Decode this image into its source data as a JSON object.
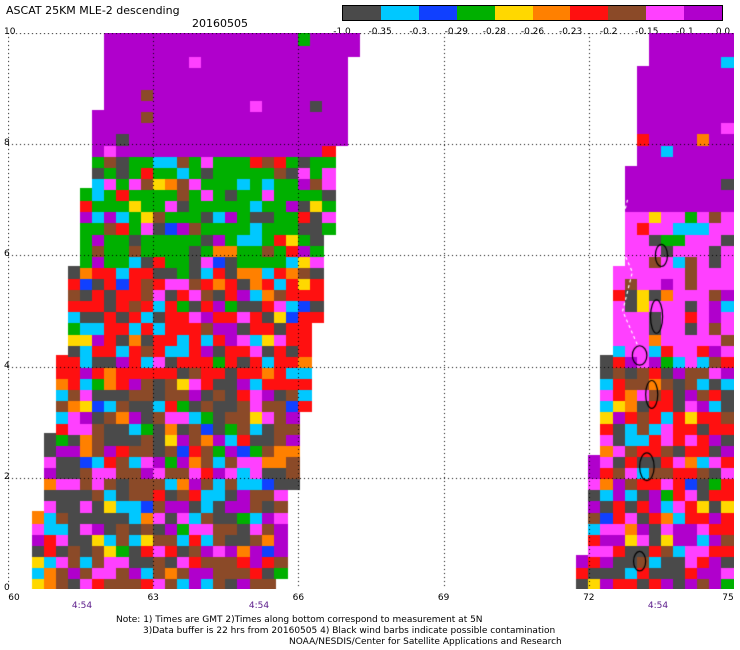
{
  "header": {
    "title": "ASCAT 25KM MLE-2 descending",
    "date": "20160505"
  },
  "colorbar": {
    "labels": [
      "-1.0",
      "-0.35",
      "-0.3",
      "-0.29",
      "-0.28",
      "-0.26",
      "-0.23",
      "-0.2",
      "-0.15",
      "-0.1",
      "0.0"
    ],
    "colors": [
      "#4a4a4a",
      "#00c8ff",
      "#1040ff",
      "#00b000",
      "#ffd800",
      "#ff8000",
      "#ff1010",
      "#8b4a28",
      "#ff40ff",
      "#b000cc"
    ]
  },
  "axes": {
    "x_ticks": [
      "60",
      "63",
      "66",
      "69",
      "72",
      "75"
    ],
    "y_ticks": [
      "0",
      "2",
      "4",
      "6",
      "8",
      "10"
    ],
    "time_labels": [
      "4:54",
      "4:54",
      "4:54"
    ]
  },
  "notes": {
    "line1": "Note: 1) Times are GMT 2)Times along bottom correspond to measurement at 5N",
    "line2": "3)Data buffer is 22 hrs from 20160505 4) Black wind barbs indicate possible contamination",
    "line3": "NOAA/NESDIS/Center for Satellite Applications and Research"
  },
  "chart_data": {
    "type": "heatmap",
    "title": "ASCAT 25KM MLE-2 descending",
    "xlim": [
      60,
      75
    ],
    "ylim": [
      0,
      10
    ],
    "cell_size_deg": 0.25,
    "grid": "dotted",
    "colorscale": {
      "bounds": [
        -1.0,
        -0.35,
        -0.3,
        -0.29,
        -0.28,
        -0.26,
        -0.23,
        -0.2,
        -0.15,
        -0.1,
        0.0
      ],
      "colors": [
        "#4a4a4a",
        "#00c8ff",
        "#1040ff",
        "#00b000",
        "#ffd800",
        "#ff8000",
        "#ff1010",
        "#8b4a28",
        "#ff40ff",
        "#b000cc"
      ]
    },
    "swaths": [
      {
        "boundary": [
          [
            60.4,
            0.0
          ],
          [
            62.1,
            10.0
          ],
          [
            67.2,
            10.0
          ],
          [
            65.6,
            0.0
          ]
        ],
        "value_bands": [
          {
            "ymin": 8.3,
            "ymax": 10.0,
            "dominant": -0.05,
            "noise": 0.04
          },
          {
            "ymin": 5.9,
            "ymax": 7.9,
            "dominant": -0.28,
            "noise": 0.5
          },
          {
            "ymin": 3.6,
            "ymax": 5.9,
            "dominant": -0.2,
            "noise": 0.6
          },
          {
            "ymin": 0.0,
            "ymax": 3.6,
            "dominant": -0.18,
            "noise": 0.85
          }
        ]
      },
      {
        "boundary": [
          [
            71.8,
            0.0
          ],
          [
            73.2,
            10.0
          ],
          [
            74.9,
            10.0
          ],
          [
            74.9,
            0.0
          ]
        ],
        "value_bands": [
          {
            "ymin": 6.8,
            "ymax": 10.0,
            "dominant": -0.05,
            "noise": 0.04
          },
          {
            "ymin": 4.2,
            "ymax": 6.8,
            "dominant": -0.12,
            "noise": 0.35
          },
          {
            "ymin": 0.0,
            "ymax": 4.2,
            "dominant": -0.2,
            "noise": 0.8
          }
        ]
      }
    ],
    "contamination_contours": "Maldives atolls near 73-73.5E, 0-7N"
  }
}
